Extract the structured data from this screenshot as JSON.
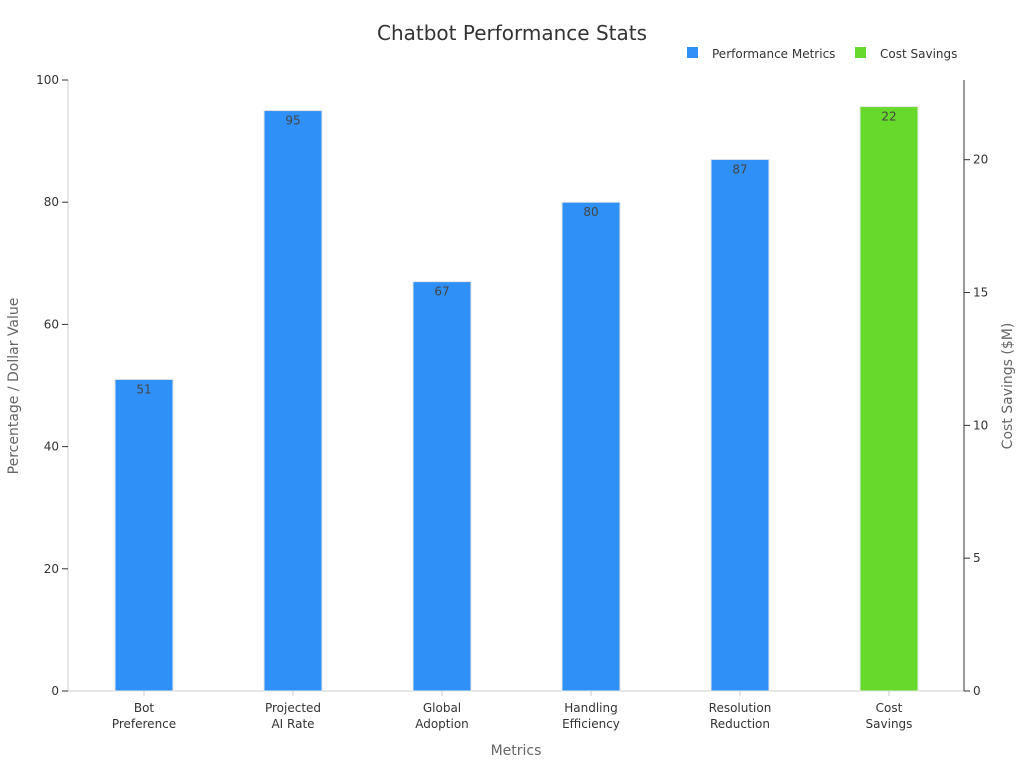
{
  "chart_data": {
    "type": "bar",
    "title": "Chatbot Performance Stats",
    "xlabel": "Metrics",
    "ylabel": "Percentage / Dollar Value",
    "y2label": "Cost Savings ($M)",
    "categories": [
      [
        "Bot",
        "Preference"
      ],
      [
        "Projected",
        "AI Rate"
      ],
      [
        "Global",
        "Adoption"
      ],
      [
        "Handling",
        "Efficiency"
      ],
      [
        "Resolution",
        "Reduction"
      ],
      [
        "Cost",
        "Savings"
      ]
    ],
    "ylim": [
      0,
      100
    ],
    "yticks": [
      0,
      20,
      40,
      60,
      80,
      100
    ],
    "y2lim": [
      0,
      23
    ],
    "y2ticks": [
      0,
      5,
      10,
      15,
      20
    ],
    "legend_position": "top-right",
    "grid": false,
    "series": [
      {
        "name": "Performance Metrics",
        "axis": "left",
        "color": "#2f91f7",
        "values": [
          51,
          95,
          67,
          80,
          87,
          null
        ]
      },
      {
        "name": "Cost Savings",
        "axis": "right",
        "color": "#66d92a",
        "values": [
          null,
          null,
          null,
          null,
          null,
          22
        ]
      }
    ]
  }
}
